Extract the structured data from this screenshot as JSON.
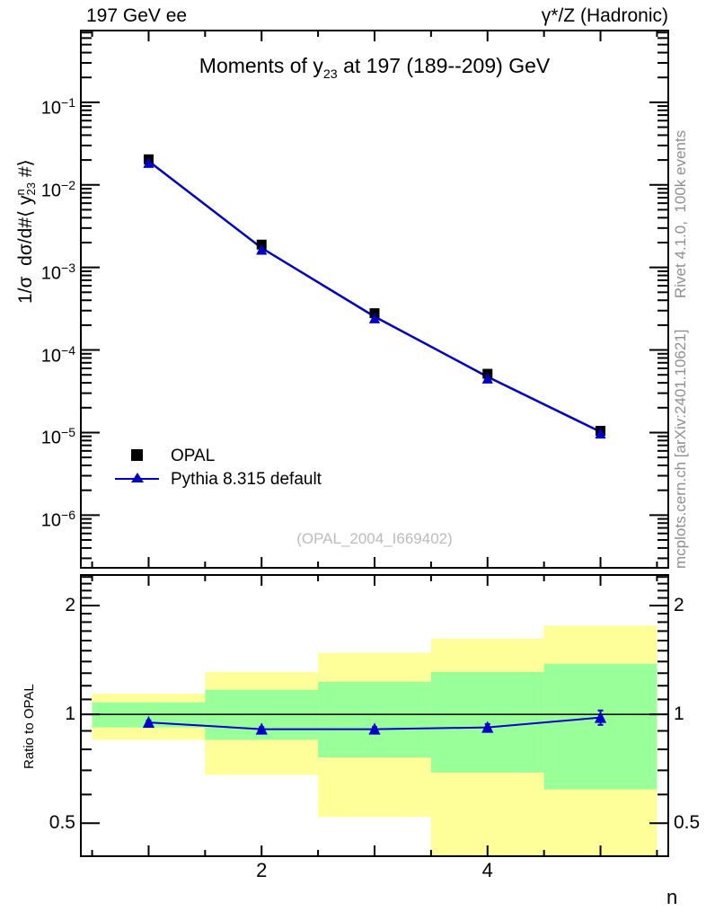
{
  "header": {
    "left": "197 GeV ee",
    "right": "γ*/Z (Hadronic)"
  },
  "title": {
    "pre": "Moments of y",
    "sub": "23",
    "post": " at 197 (189--209) GeV"
  },
  "axes": {
    "ylabel": {
      "pre": "1/σ  dσ/d#⟨ y",
      "sup": "n",
      "sub": "23",
      "post": " #⟩"
    },
    "ratio_ylabel": "Ratio to OPAL",
    "xlabel": "n"
  },
  "legend": {
    "items": [
      {
        "label": "OPAL",
        "marker": "square",
        "color": "#000000"
      },
      {
        "label": "Pythia 8.315 default",
        "marker": "triangle-line",
        "color": "#0000cc"
      }
    ]
  },
  "watermark": "(OPAL_2004_I669402)",
  "sidebar": {
    "top": "Rivet 4.1.0,  100k events",
    "bottom": "mcplots.cern.ch [arXiv:2401.10621]"
  },
  "chart_data": {
    "type": "line",
    "title": "Moments of y_23 at 197 (189--209) GeV",
    "xlabel": "n",
    "ylabel": "1/σ dσ/d#⟨ y^n_23 #⟩",
    "x": [
      1,
      2,
      3,
      4,
      5
    ],
    "xlim": [
      0.4,
      5.6
    ],
    "ylog": true,
    "ylim": [
      2.3e-07,
      0.74
    ],
    "ytick_exponents": [
      -1,
      -2,
      -3,
      -4,
      -5,
      -6
    ],
    "xticks": {
      "major": [
        1,
        2,
        3,
        4,
        5
      ],
      "minor": [
        0.5,
        1.5,
        2.5,
        3.5,
        4.5,
        5.5
      ],
      "labeled": [
        2,
        4
      ]
    },
    "series": [
      {
        "name": "OPAL",
        "marker": "square",
        "color": "#000000",
        "values": [
          0.0204,
          0.00189,
          0.000279,
          5.15e-05,
          1.05e-05
        ]
      },
      {
        "name": "Pythia 8.315 default",
        "marker": "triangle",
        "color": "#0000cc",
        "line": true,
        "values": [
          0.0194,
          0.00172,
          0.000254,
          4.74e-05,
          1.02e-05
        ]
      }
    ],
    "ratio": {
      "label": "Ratio to OPAL",
      "ylog": true,
      "ylim": [
        0.405,
        2.43
      ],
      "yticks": [
        0.5,
        1,
        2
      ],
      "reference": 1,
      "values": [
        0.95,
        0.91,
        0.91,
        0.92,
        0.98
      ],
      "errors": [
        0.012,
        0.012,
        0.012,
        0.02,
        0.045
      ],
      "band_edges": [
        0.5,
        1.5,
        2.5,
        3.5,
        4.5,
        5.5
      ],
      "yellow_band": [
        [
          0.85,
          1.14
        ],
        [
          0.68,
          1.31
        ],
        [
          0.52,
          1.48
        ],
        [
          0.4,
          1.62
        ],
        [
          0.4,
          1.76
        ]
      ],
      "green_band": [
        [
          0.92,
          1.08
        ],
        [
          0.85,
          1.17
        ],
        [
          0.76,
          1.23
        ],
        [
          0.69,
          1.31
        ],
        [
          0.62,
          1.38
        ]
      ]
    },
    "colors": {
      "yellow": "#ffff99",
      "green": "#99ff99",
      "line": "#0000cc",
      "frame": "#000000",
      "gray_text": "#8f8f8f",
      "watermark": "#bcbcbc"
    }
  }
}
